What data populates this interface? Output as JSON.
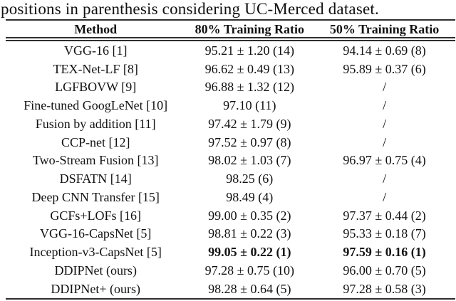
{
  "caption": "positions in parenthesis considering UC-Merced dataset.",
  "table": {
    "columns": [
      "Method",
      "80% Training Ratio",
      "50% Training Ratio"
    ],
    "rows": [
      {
        "method": "VGG-16 [1]",
        "ratio80": "95.21 ± 1.20 (14)",
        "ratio50": "94.14 ± 0.69 (8)"
      },
      {
        "method": "TEX-Net-LF [8]",
        "ratio80": "96.62 ± 0.49 (13)",
        "ratio50": "95.89 ± 0.37 (6)"
      },
      {
        "method": "LGFBOVW [9]",
        "ratio80": "96.88 ± 1.32 (12)",
        "ratio50": "/"
      },
      {
        "method": "Fine-tuned GoogLeNet [10]",
        "ratio80": "97.10 (11)",
        "ratio50": "/"
      },
      {
        "method": "Fusion by addition [11]",
        "ratio80": "97.42 ± 1.79 (9)",
        "ratio50": "/"
      },
      {
        "method": "CCP-net [12]",
        "ratio80": "97.52 ± 0.97 (8)",
        "ratio50": "/"
      },
      {
        "method": "Two-Stream Fusion [13]",
        "ratio80": "98.02 ± 1.03 (7)",
        "ratio50": "96.97 ± 0.75 (4)"
      },
      {
        "method": "DSFATN [14]",
        "ratio80": "98.25 (6)",
        "ratio50": "/"
      },
      {
        "method": "Deep CNN Transfer [15]",
        "ratio80": "98.49 (4)",
        "ratio50": "/"
      },
      {
        "method": "GCFs+LOFs [16]",
        "ratio80": "99.00 ± 0.35 (2)",
        "ratio50": "97.37 ± 0.44 (2)"
      },
      {
        "method": "VGG-16-CapsNet [5]",
        "ratio80": "98.81 ± 0.22 (3)",
        "ratio50": "95.33 ± 0.18 (7)"
      },
      {
        "method": "Inception-v3-CapsNet [5]",
        "ratio80": "99.05 ± 0.22 (1)",
        "ratio50": "97.59 ± 0.16 (1)"
      },
      {
        "method": "DDIPNet (ours)",
        "ratio80": "97.28 ± 0.75 (10)",
        "ratio50": "96.00 ± 0.70 (5)"
      },
      {
        "method": "DDIPNet+ (ours)",
        "ratio80": "98.28 ± 0.64 (5)",
        "ratio50": "97.28 ± 0.58 (3)"
      }
    ]
  }
}
